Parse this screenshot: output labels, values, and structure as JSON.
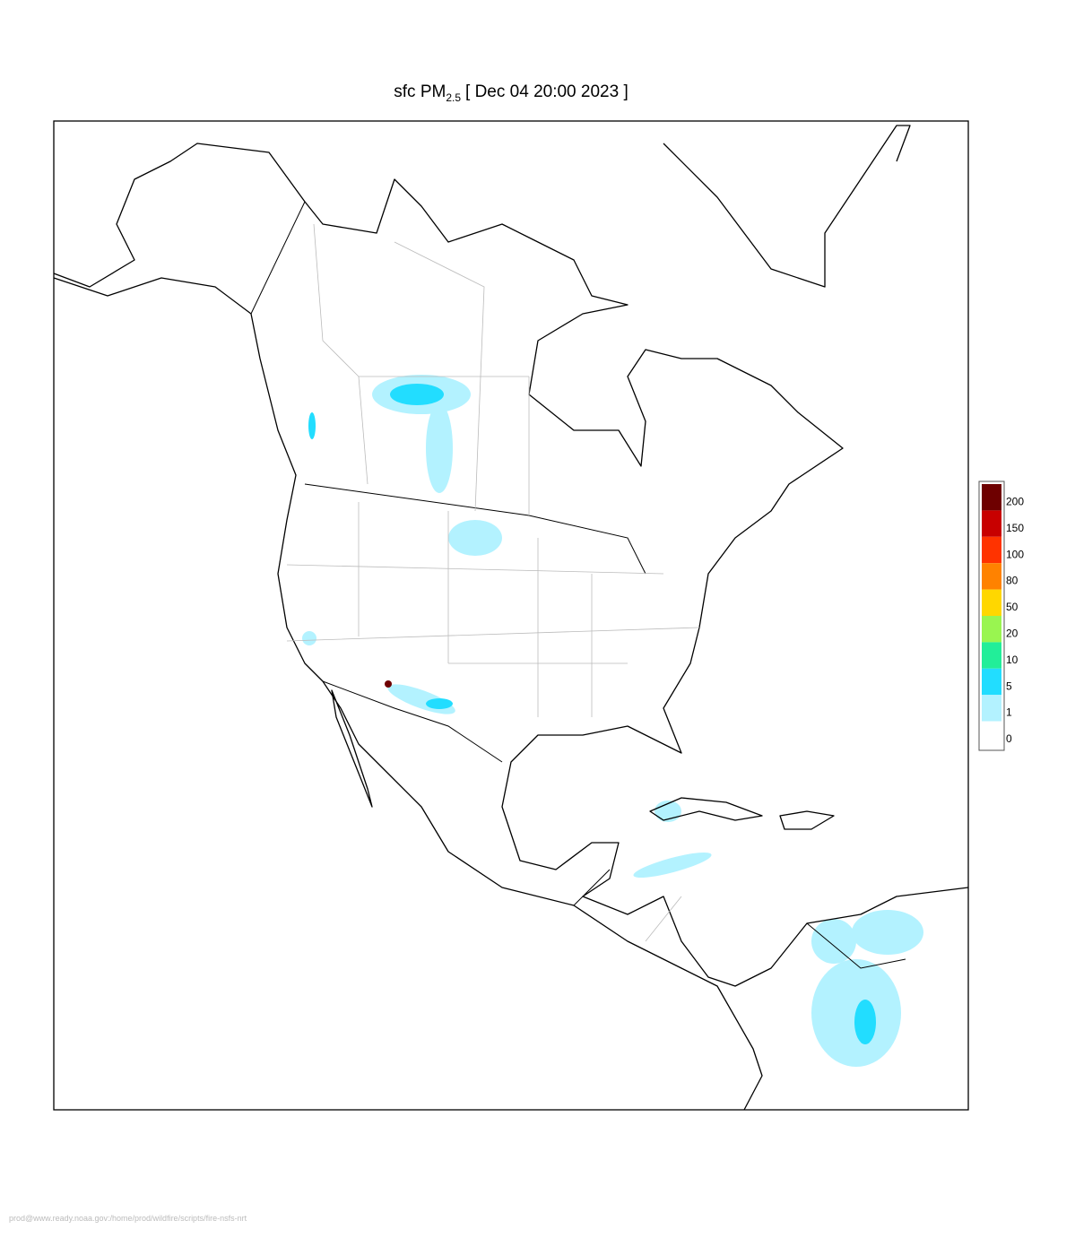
{
  "title": {
    "prefix": "sfc PM",
    "subscript": "2.5",
    "suffix": "[ Dec 04 20:00 2023 ]"
  },
  "legend": {
    "items": [
      {
        "label": "200",
        "color": "#6e0000"
      },
      {
        "label": "150",
        "color": "#c80000"
      },
      {
        "label": "100",
        "color": "#ff3300"
      },
      {
        "label": "80",
        "color": "#ff8200"
      },
      {
        "label": "50",
        "color": "#ffd700"
      },
      {
        "label": "20",
        "color": "#99f550"
      },
      {
        "label": "10",
        "color": "#22ee99"
      },
      {
        "label": "5",
        "color": "#22ddff"
      },
      {
        "label": "1",
        "color": "#b3f2ff"
      },
      {
        "label": "0",
        "color": "#ffffff"
      }
    ]
  },
  "footer": "prod@www.ready.noaa.gov:/home/prod/wildfire/scripts/fire-nsfs-nrt"
}
